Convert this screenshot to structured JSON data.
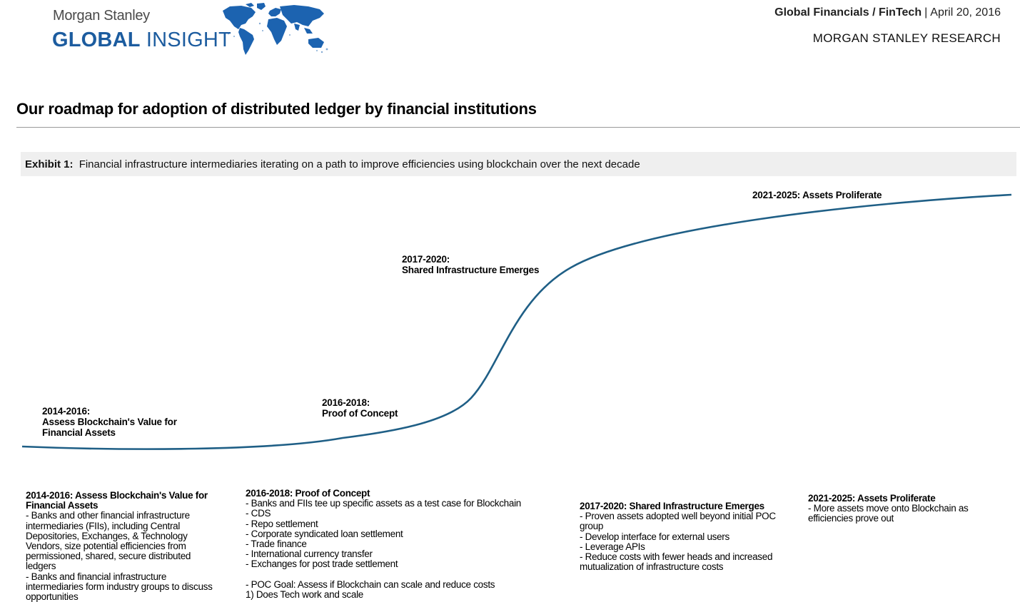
{
  "header": {
    "brand_small": "Morgan Stanley",
    "brand_big_bold": "GLOBAL",
    "brand_big_light": " INSIGHT",
    "sector": "Global Financials / FinTech",
    "separator": "|",
    "date": "April 20, 2016",
    "research_label": "MORGAN STANLEY RESEARCH",
    "globe_icon": "world-map-icon",
    "brand_color": "#1c5c9f"
  },
  "page": {
    "title": "Our roadmap for adoption of distributed ledger by financial institutions"
  },
  "exhibit": {
    "label": "Exhibit 1:",
    "caption": "Financial infrastructure intermediaries iterating on a path to improve efficiencies using blockchain over the next decade"
  },
  "curve": {
    "color": "#1f5f86",
    "labels": [
      {
        "line1": "2014-2016:",
        "line2": "Assess Blockchain's Value for",
        "line3": "Financial Assets"
      },
      {
        "line1": "2016-2018:",
        "line2": "Proof of Concept"
      },
      {
        "line1": "2017-2020:",
        "line2": "Shared Infrastructure Emerges"
      },
      {
        "line1": "2021-2025: Assets Proliferate"
      }
    ]
  },
  "phases": [
    {
      "heading": "2014-2016: Assess Blockchain's Value for\nFinancial Assets",
      "body": "- Banks and other financial infrastructure\nintermediaries (FIIs), including Central\nDepositories, Exchanges, & Technology\nVendors, size potential efficiencies from\npermissioned, shared, secure distributed\nledgers\n- Banks and financial infrastructure\nintermediaries form industry groups to discuss\nopportunities"
    },
    {
      "heading": "2016-2018: Proof of Concept",
      "body": "- Banks and FIIs tee up specific assets as a test case for Blockchain\n- CDS\n- Repo settlement\n- Corporate syndicated loan settlement\n- Trade finance\n- International currency transfer\n- Exchanges for post trade settlement\n\n- POC Goal: Assess if Blockchain can scale and reduce costs\n1) Does Tech work and scale"
    },
    {
      "heading": "2017-2020: Shared Infrastructure Emerges",
      "body": "- Proven assets adopted well beyond initial POC\ngroup\n- Develop interface for external users\n- Leverage APIs\n- Reduce costs with fewer heads and increased\nmutualization of infrastructure costs"
    },
    {
      "heading": "2021-2025: Assets Proliferate",
      "body": "- More assets move onto Blockchain as\nefficiencies prove out"
    }
  ]
}
